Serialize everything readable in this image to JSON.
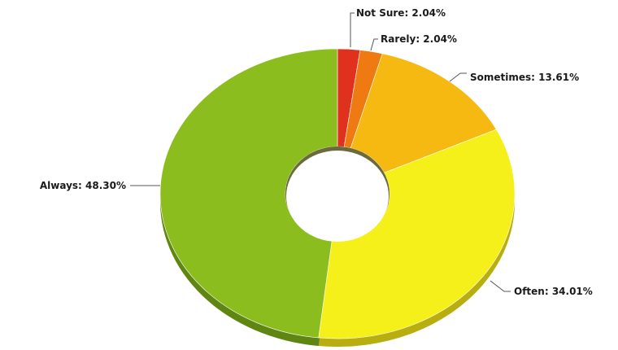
{
  "chart_data": {
    "type": "pie",
    "style": "donut-3d",
    "title": "",
    "legend": "none",
    "slices": [
      {
        "label": "Not Sure",
        "value": 2.04,
        "display": "Not Sure: 2.04%",
        "color": "#e0301e",
        "side_color": "#9c1f12"
      },
      {
        "label": "Rarely",
        "value": 2.04,
        "display": "Rarely: 2.04%",
        "color": "#f07a12",
        "side_color": "#a8520a"
      },
      {
        "label": "Sometimes",
        "value": 13.61,
        "display": "Sometimes: 13.61%",
        "color": "#f5b912",
        "side_color": "#b5840a"
      },
      {
        "label": "Often",
        "value": 34.01,
        "display": "Often: 34.01%",
        "color": "#f5ef1a",
        "side_color": "#b8ae10"
      },
      {
        "label": "Always",
        "value": 48.3,
        "display": "Always: 48.30%",
        "color": "#8cbd1e",
        "side_color": "#5f8512"
      }
    ]
  }
}
